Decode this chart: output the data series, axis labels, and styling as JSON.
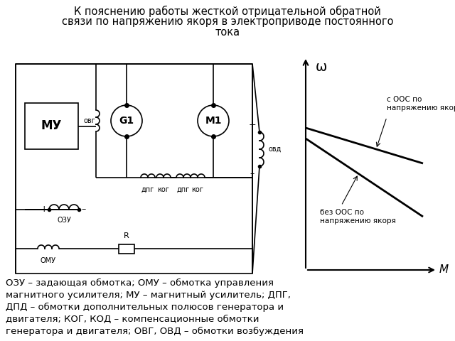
{
  "title_line1": "К пояснению работы жесткой отрицательной обратной",
  "title_line2": "связи по напряжению якоря в электроприводе постоянного",
  "title_line3": "тока",
  "background_color": "#ffffff",
  "bottom_text": "ОЗУ – задающая обмотка; ОМУ – обмотка управления\nмагнитного усилителя; МУ – магнитный усилитель; ДПГ,\nДПД – обмотки дополнительных полюсов генератора и\nдвигателя; КОГ, КОД – компенсационные обмотки\nгенератора и двигателя; ОВГ, ОВД – обмотки возбуждения\nгенератора и двигателя.",
  "label_oos1": "с ООС по\nнапряжению якоря",
  "label_oos2": "без ООС по\nнапряжению якоря",
  "label_omega": "ω",
  "label_M": "M"
}
